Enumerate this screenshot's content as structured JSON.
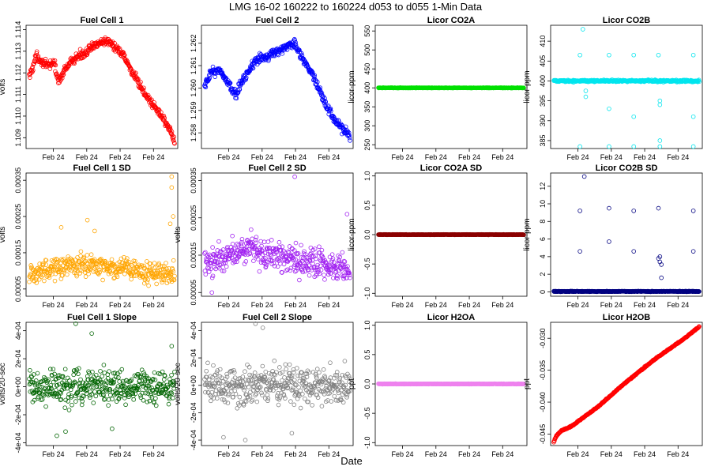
{
  "figure": {
    "title": "LMG   16-02    160222 to 160224    d053 to d055   1-Min Data",
    "xlabel": "Date"
  },
  "chart_data": [
    {
      "title": "Fuel Cell 1",
      "type": "scatter",
      "ylabel": "volts",
      "color": "#ff0000",
      "xticks": [
        "Feb 24",
        "Feb 24",
        "Feb 24",
        "Feb 24"
      ],
      "ylim": [
        1.1085,
        1.1142
      ],
      "yticks": [
        1.109,
        1.11,
        1.111,
        1.112,
        1.113,
        1.114
      ],
      "ytick_labels": [
        "1.109",
        "1.110",
        "1.111",
        "1.112",
        "1.113",
        "1.114"
      ],
      "pattern": {
        "kind": "trend",
        "knots": [
          [
            0,
            1.1118
          ],
          [
            0.05,
            1.1128
          ],
          [
            0.12,
            1.1123
          ],
          [
            0.17,
            1.1125
          ],
          [
            0.2,
            1.1116
          ],
          [
            0.25,
            1.1122
          ],
          [
            0.32,
            1.1127
          ],
          [
            0.4,
            1.113
          ],
          [
            0.48,
            1.1134
          ],
          [
            0.55,
            1.1135
          ],
          [
            0.58,
            1.1132
          ],
          [
            0.65,
            1.1128
          ],
          [
            0.75,
            1.1115
          ],
          [
            0.82,
            1.1108
          ],
          [
            0.9,
            1.1101
          ],
          [
            0.96,
            1.1095
          ],
          [
            1,
            1.1088
          ]
        ],
        "noise": 0.0002
      }
    },
    {
      "title": "Fuel Cell 2",
      "type": "scatter",
      "ylabel": "",
      "color": "#0000ff",
      "xticks": [
        "Feb 24",
        "Feb 24",
        "Feb 24",
        "Feb 24"
      ],
      "ylim": [
        1.2573,
        1.2628
      ],
      "yticks": [
        1.258,
        1.259,
        1.26,
        1.261,
        1.262
      ],
      "ytick_labels": [
        "1.258",
        "1.259",
        "1.260",
        "1.261",
        "1.262"
      ],
      "pattern": {
        "kind": "trend",
        "knots": [
          [
            0,
            1.26
          ],
          [
            0.05,
            1.2608
          ],
          [
            0.12,
            1.2607
          ],
          [
            0.18,
            1.26
          ],
          [
            0.22,
            1.2597
          ],
          [
            0.27,
            1.2605
          ],
          [
            0.35,
            1.2612
          ],
          [
            0.45,
            1.2615
          ],
          [
            0.55,
            1.2618
          ],
          [
            0.62,
            1.262
          ],
          [
            0.66,
            1.2615
          ],
          [
            0.75,
            1.2605
          ],
          [
            0.85,
            1.259
          ],
          [
            0.93,
            1.2583
          ],
          [
            1,
            1.2578
          ]
        ],
        "noise": 0.0002
      }
    },
    {
      "title": "Licor CO2A",
      "type": "scatter",
      "ylabel": "licor-ppm",
      "color": "#00e000",
      "xticks": [
        "Feb 24",
        "Feb 24",
        "Feb 24",
        "Feb 24"
      ],
      "ylim": [
        240,
        565
      ],
      "yticks": [
        250,
        300,
        350,
        400,
        450,
        500,
        550
      ],
      "ytick_labels": [
        "250",
        "300",
        "350",
        "400",
        "450",
        "500",
        "550"
      ],
      "pattern": {
        "kind": "flat",
        "value": 400,
        "noise": 0.6
      }
    },
    {
      "title": "Licor CO2B",
      "type": "scatter",
      "ylabel": "licor-ppm",
      "color": "#00e5ee",
      "xticks": [
        "Feb 24",
        "Feb 24",
        "Feb 24",
        "Feb 24"
      ],
      "ylim": [
        383,
        414
      ],
      "yticks": [
        385,
        390,
        395,
        400,
        405,
        410
      ],
      "ytick_labels": [
        "385",
        "390",
        "395",
        "400",
        "405",
        "410"
      ],
      "pattern": {
        "kind": "flat",
        "value": 400,
        "noise": 0.25,
        "spikes": [
          [
            0.18,
            406.5
          ],
          [
            0.18,
            383.5
          ],
          [
            0.2,
            413
          ],
          [
            0.22,
            396
          ],
          [
            0.22,
            397.5
          ],
          [
            0.38,
            406.5
          ],
          [
            0.38,
            393
          ],
          [
            0.38,
            383.5
          ],
          [
            0.55,
            406.5
          ],
          [
            0.55,
            391
          ],
          [
            0.55,
            383.5
          ],
          [
            0.72,
            406.5
          ],
          [
            0.73,
            395
          ],
          [
            0.73,
            394
          ],
          [
            0.73,
            385
          ],
          [
            0.73,
            383.5
          ],
          [
            0.96,
            406.5
          ],
          [
            0.96,
            391
          ],
          [
            0.96,
            383.5
          ]
        ]
      }
    },
    {
      "title": "Fuel Cell 1 SD",
      "type": "scatter",
      "ylabel": "volts",
      "color": "#ffa500",
      "xticks": [
        "Feb 24",
        "Feb 24",
        "Feb 24",
        "Feb 24"
      ],
      "ylim": [
        3e-05,
        0.00037
      ],
      "yticks": [
        5e-05,
        0.00015,
        0.00025,
        0.00035
      ],
      "ytick_labels": [
        "0.00005",
        "0.00015",
        "0.00025",
        "0.00035"
      ],
      "pattern": {
        "kind": "trend",
        "knots": [
          [
            0,
            9e-05
          ],
          [
            0.3,
            0.00012
          ],
          [
            0.6,
            0.00011
          ],
          [
            1,
            9e-05
          ]
        ],
        "noise": 3e-05,
        "spikes": [
          [
            0.98,
            0.00036
          ],
          [
            0.98,
            0.00033
          ],
          [
            0.99,
            0.00025
          ],
          [
            0.97,
            0.00023
          ],
          [
            0.22,
            0.00022
          ],
          [
            0.4,
            0.00024
          ],
          [
            0.45,
            0.00021
          ]
        ]
      }
    },
    {
      "title": "Fuel Cell 2 SD",
      "type": "scatter",
      "ylabel": "volts",
      "color": "#a020f0",
      "xticks": [
        "Feb 24",
        "Feb 24",
        "Feb 24",
        "Feb 24"
      ],
      "ylim": [
        4e-05,
        0.00037
      ],
      "yticks": [
        5e-05,
        0.00015,
        0.00025,
        0.00035
      ],
      "ytick_labels": [
        "0.00005",
        "0.00015",
        "0.00025",
        "0.00035"
      ],
      "pattern": {
        "kind": "trend",
        "knots": [
          [
            0,
            0.00012
          ],
          [
            0.3,
            0.00017
          ],
          [
            0.6,
            0.00014
          ],
          [
            1,
            0.00011
          ]
        ],
        "noise": 4e-05,
        "spikes": [
          [
            0.62,
            0.00036
          ],
          [
            0.98,
            0.00026
          ],
          [
            0.05,
            5e-05
          ]
        ]
      }
    },
    {
      "title": "Licor CO2A SD",
      "type": "scatter",
      "ylabel": "licor-ppm",
      "color": "#8b0000",
      "xticks": [
        "Feb 24",
        "Feb 24",
        "Feb 24",
        "Feb 24"
      ],
      "ylim": [
        -1.05,
        1.05
      ],
      "yticks": [
        -1.0,
        -0.5,
        0.0,
        0.5,
        1.0
      ],
      "ytick_labels": [
        "-1.0",
        "-0.5",
        "0.0",
        "0.5",
        "1.0"
      ],
      "pattern": {
        "kind": "flat",
        "value": 0,
        "noise": 0.004
      }
    },
    {
      "title": "Licor CO2B SD",
      "type": "scatter",
      "ylabel": "licor-ppm",
      "color": "#000080",
      "xticks": [
        "Feb 24",
        "Feb 24",
        "Feb 24",
        "Feb 24"
      ],
      "ylim": [
        -0.5,
        13.5
      ],
      "yticks": [
        0,
        2,
        4,
        6,
        8,
        10,
        12
      ],
      "ytick_labels": [
        "0",
        "2",
        "4",
        "6",
        "8",
        "10",
        "12"
      ],
      "pattern": {
        "kind": "flat",
        "value": 0.05,
        "noise": 0.04,
        "spikes": [
          [
            0.18,
            9.2
          ],
          [
            0.18,
            4.6
          ],
          [
            0.21,
            13.1
          ],
          [
            0.38,
            9.5
          ],
          [
            0.38,
            5.7
          ],
          [
            0.55,
            9.2
          ],
          [
            0.55,
            4.6
          ],
          [
            0.72,
            9.5
          ],
          [
            0.72,
            3.8
          ],
          [
            0.73,
            3.4
          ],
          [
            0.74,
            3.1
          ],
          [
            0.74,
            1.6
          ],
          [
            0.73,
            4.0
          ],
          [
            0.96,
            9.2
          ],
          [
            0.96,
            4.6
          ]
        ]
      }
    },
    {
      "title": "Fuel Cell 1 Slope",
      "type": "scatter",
      "ylabel": "volts/20-sec",
      "color": "#006400",
      "xticks": [
        "Feb 24",
        "Feb 24",
        "Feb 24",
        "Feb 24"
      ],
      "ylim": [
        -0.00042,
        0.00046
      ],
      "yticks": [
        -0.0004,
        -0.0002,
        0.0,
        0.0002,
        0.0004
      ],
      "ytick_labels": [
        "-4e-04",
        "-2e-04",
        "0e+00",
        "2e-04",
        "4e-04"
      ],
      "pattern": {
        "kind": "flat",
        "value": 0.0,
        "noise": 0.00012,
        "spikes": [
          [
            0.32,
            0.00045
          ],
          [
            0.43,
            0.00038
          ],
          [
            0.19,
            -0.00035
          ],
          [
            0.25,
            -0.00032
          ],
          [
            0.57,
            -0.0003
          ],
          [
            0.98,
            0.00029
          ]
        ]
      }
    },
    {
      "title": "Fuel Cell 2 Slope",
      "type": "scatter",
      "ylabel": "volts/20-sec",
      "color": "#808080",
      "xticks": [
        "Feb 24",
        "Feb 24",
        "Feb 24",
        "Feb 24"
      ],
      "ylim": [
        -0.00044,
        0.00046
      ],
      "yticks": [
        -0.0004,
        -0.0002,
        0.0,
        0.0002,
        0.0004
      ],
      "ytick_labels": [
        "-4e-04",
        "-2e-04",
        "0e+00",
        "2e-04",
        "4e-04"
      ],
      "pattern": {
        "kind": "flat",
        "value": 0.0,
        "noise": 0.00013,
        "spikes": [
          [
            0.35,
            0.00045
          ],
          [
            0.4,
            0.00042
          ],
          [
            0.28,
            -0.0004
          ],
          [
            0.13,
            -0.00038
          ],
          [
            0.6,
            -0.00035
          ]
        ]
      }
    },
    {
      "title": "Licor H2OA",
      "type": "scatter",
      "ylabel": "ppt",
      "color": "#ee82ee",
      "xticks": [
        "Feb 24",
        "Feb 24",
        "Feb 24",
        "Feb 24"
      ],
      "ylim": [
        -1.05,
        1.05
      ],
      "yticks": [
        -1.0,
        -0.5,
        0.0,
        0.5,
        1.0
      ],
      "ytick_labels": [
        "-1.0",
        "-0.5",
        "0.0",
        "0.5",
        "1.0"
      ],
      "pattern": {
        "kind": "flat",
        "value": 0,
        "noise": 0.004
      }
    },
    {
      "title": "Licor H2OB",
      "type": "scatter",
      "ylabel": "ppt",
      "color": "#ff0000",
      "xticks": [
        "Feb 24",
        "Feb 24",
        "Feb 24",
        "Feb 24"
      ],
      "ylim": [
        -0.0468,
        -0.0275
      ],
      "yticks": [
        -0.045,
        -0.04,
        -0.035,
        -0.03
      ],
      "ytick_labels": [
        "-0.045",
        "-0.040",
        "-0.035",
        "-0.030"
      ],
      "pattern": {
        "kind": "trend",
        "knots": [
          [
            0,
            -0.0462
          ],
          [
            0.02,
            -0.0452
          ],
          [
            0.05,
            -0.0445
          ],
          [
            0.12,
            -0.0438
          ],
          [
            0.3,
            -0.0408
          ],
          [
            0.5,
            -0.0368
          ],
          [
            0.7,
            -0.0332
          ],
          [
            0.9,
            -0.03
          ],
          [
            1,
            -0.0282
          ]
        ],
        "noise": 0.0001
      }
    }
  ]
}
